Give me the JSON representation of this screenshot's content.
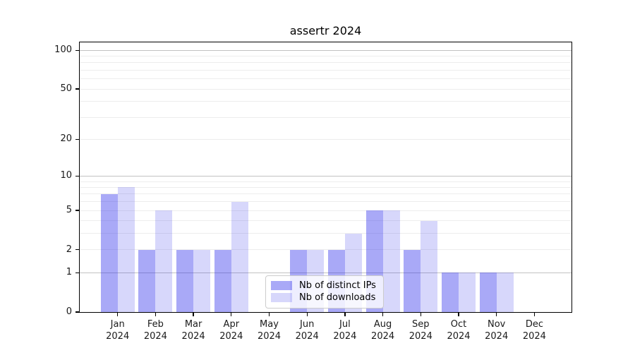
{
  "chart_data": {
    "type": "bar",
    "title": "assertr 2024",
    "categories": [
      "Jan",
      "Feb",
      "Mar",
      "Apr",
      "May",
      "Jun",
      "Jul",
      "Aug",
      "Sep",
      "Oct",
      "Nov",
      "Dec"
    ],
    "category_year": "2024",
    "series": [
      {
        "name": "Nb of distinct IPs",
        "color": "rgba(40,40,235,0.40)",
        "values": [
          7,
          2,
          2,
          2,
          0,
          2,
          2,
          5,
          2,
          1,
          1,
          0
        ]
      },
      {
        "name": "Nb of downloads",
        "color": "rgba(40,40,235,0.19)",
        "values": [
          8,
          5,
          2,
          6,
          0,
          2,
          3,
          5,
          4,
          1,
          1,
          0
        ]
      }
    ],
    "xlabel": "",
    "ylabel": "",
    "yscale": "log1p",
    "ylim": [
      0,
      115
    ],
    "yticks": [
      0,
      1,
      2,
      5,
      10,
      20,
      50,
      100
    ],
    "major_grid_values": [
      1,
      10,
      100
    ],
    "minor_grid_values": [
      2,
      3,
      4,
      5,
      6,
      7,
      8,
      9,
      20,
      30,
      40,
      50,
      60,
      70,
      80,
      90
    ],
    "grid": "on",
    "legend_position": "lower-center",
    "colors": {
      "background": "#ffffff",
      "axis": "#000000",
      "text": "#1a1a1a",
      "major_grid": "#c2c2c2",
      "minor_grid": "#ededed"
    }
  }
}
